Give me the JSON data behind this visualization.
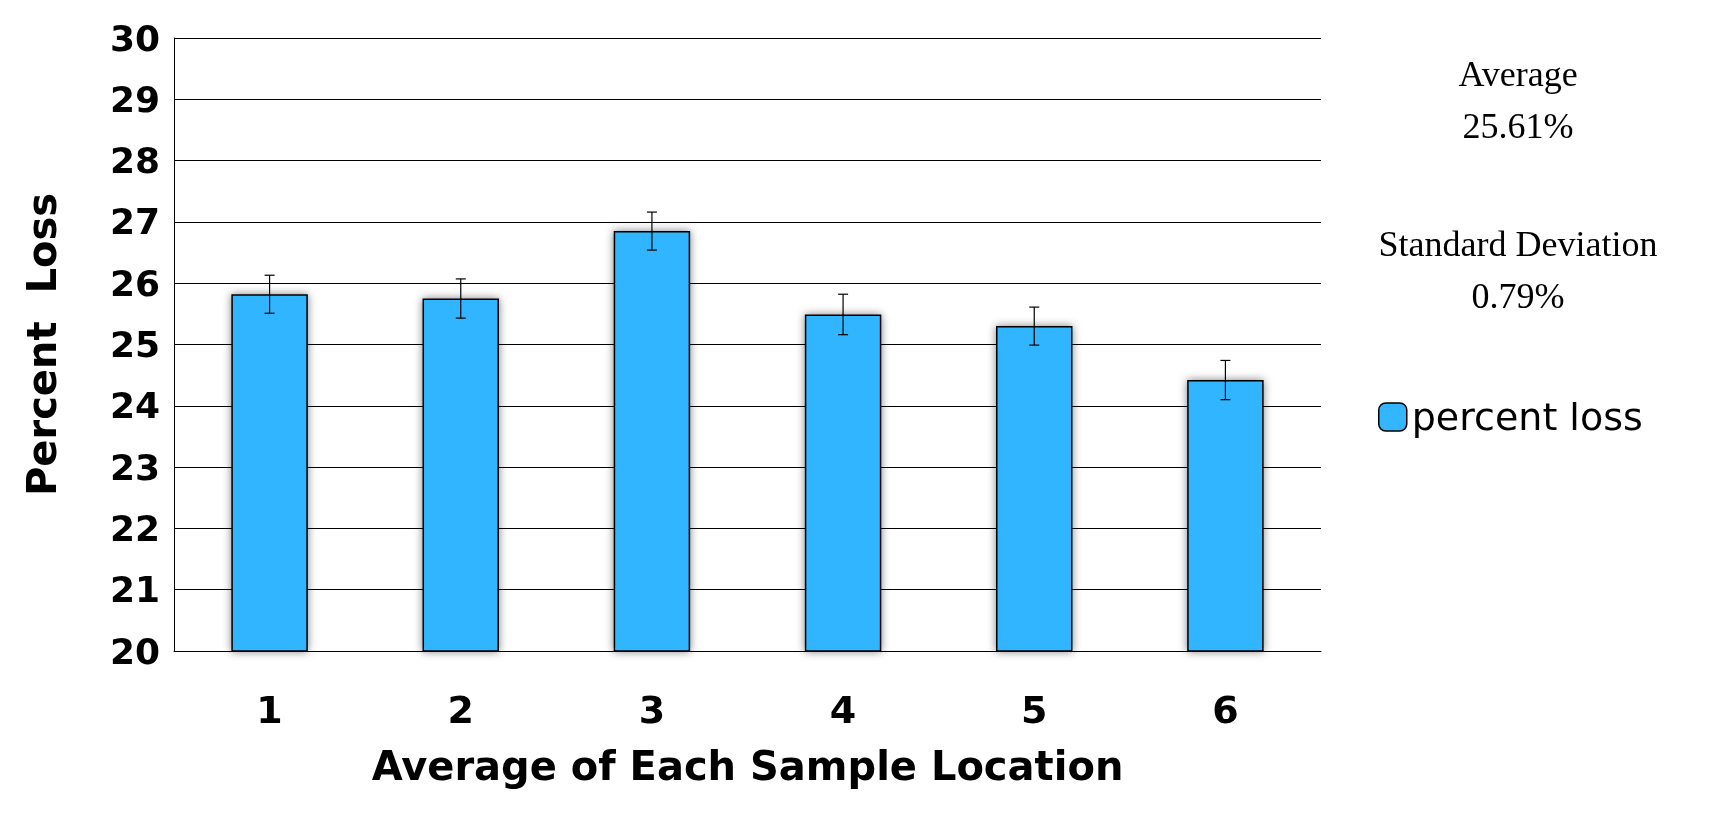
{
  "chart_data": {
    "type": "bar",
    "xlabel": "Average of Each Sample Location",
    "ylabel": "Percent  Loss",
    "categories": [
      "1",
      "2",
      "3",
      "4",
      "5",
      "6"
    ],
    "series": [
      {
        "name": "percent loss",
        "color": "#33b5ff",
        "values": [
          25.82,
          25.75,
          26.85,
          25.49,
          25.3,
          24.42
        ],
        "errors": [
          0.31,
          0.32,
          0.31,
          0.33,
          0.31,
          0.32
        ]
      }
    ],
    "ylim": [
      20,
      30
    ],
    "yticks": [
      20,
      21,
      22,
      23,
      24,
      25,
      26,
      27,
      28,
      29,
      30
    ],
    "grid": "y",
    "legend": "right",
    "annotations": [
      "Average\n25.61%",
      "Standard Deviation\n0.79%"
    ]
  }
}
